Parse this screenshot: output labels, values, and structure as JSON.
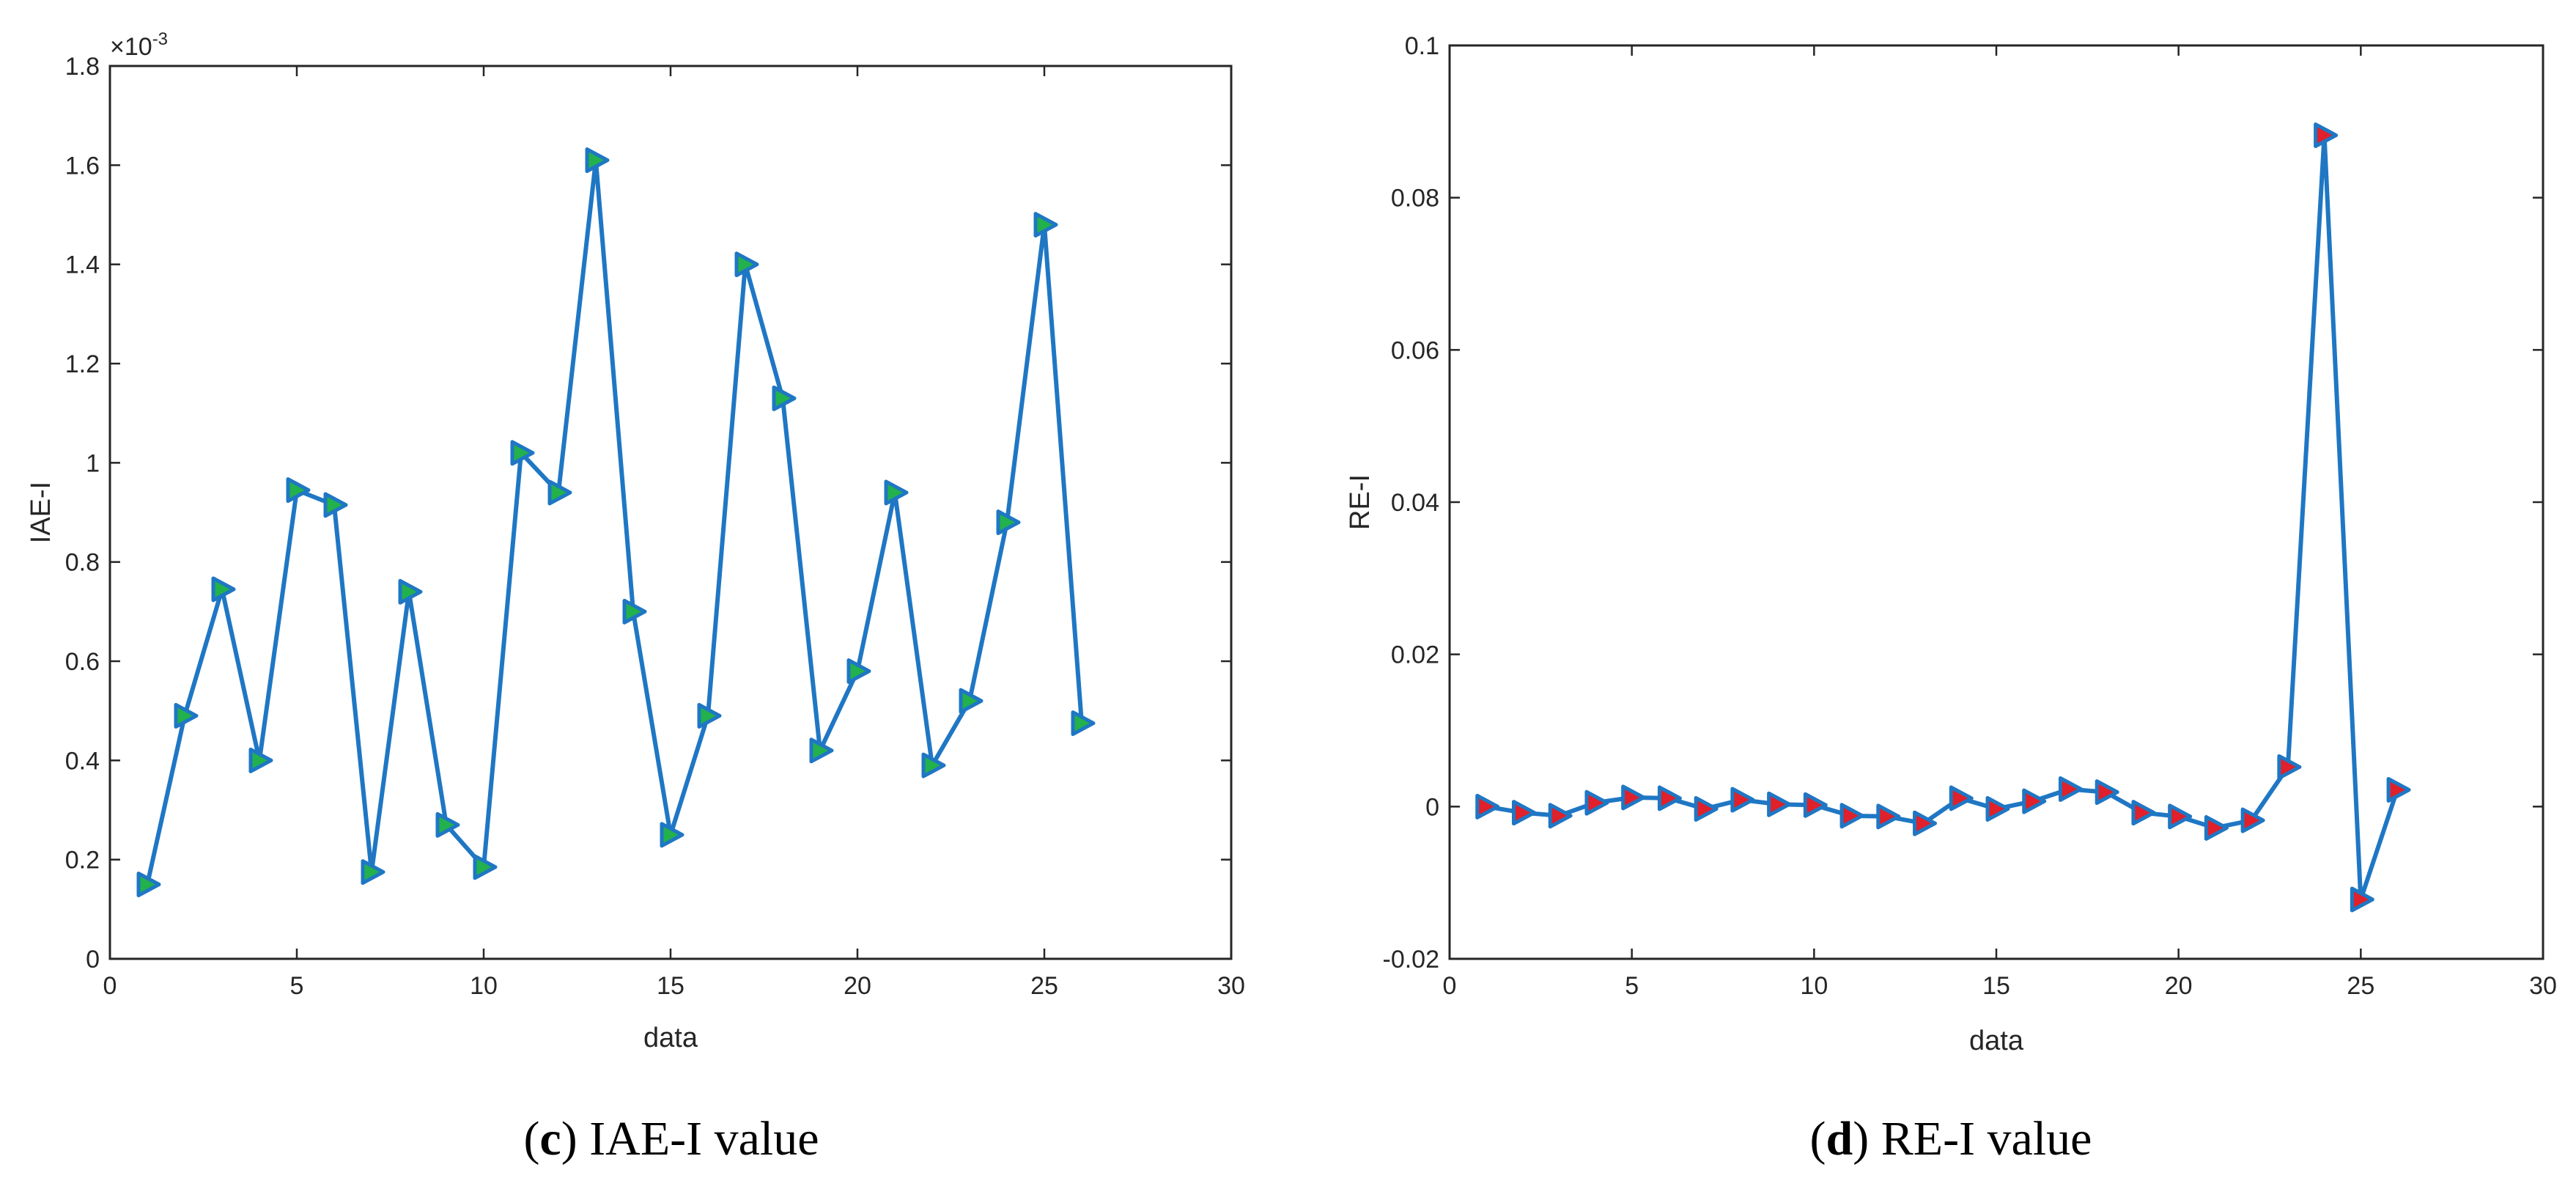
{
  "chart_data": [
    {
      "type": "line",
      "id": "c",
      "caption_letter": "c",
      "caption_open": "(",
      "caption_close": ")",
      "caption_text": " IAE-I value",
      "xlabel": "data",
      "ylabel": "IAE-I",
      "exponent_base": "×10",
      "exponent_power": "-3",
      "xlim": [
        0,
        30
      ],
      "ylim": [
        0,
        1.8
      ],
      "xticks": [
        0,
        5,
        10,
        15,
        20,
        25,
        30
      ],
      "yticks": [
        0,
        0.2,
        0.4,
        0.6,
        0.8,
        1,
        1.2,
        1.4,
        1.6,
        1.8
      ],
      "xtick_labels": [
        "0",
        "5",
        "10",
        "15",
        "20",
        "25",
        "30"
      ],
      "ytick_labels": [
        "0",
        "0.2",
        "0.4",
        "0.6",
        "0.8",
        "1",
        "1.2",
        "1.4",
        "1.6",
        "1.8"
      ],
      "series": [
        {
          "name": "IAE-I",
          "line_color": "#1f77c4",
          "marker_edge_color": "#1f77c4",
          "marker_face_color": "#22b14c",
          "x": [
            1,
            2,
            3,
            4,
            5,
            6,
            7,
            8,
            9,
            10,
            11,
            12,
            13,
            14,
            15,
            16,
            17,
            18,
            19,
            20,
            21,
            22,
            23,
            24,
            25,
            26
          ],
          "y": [
            0.15,
            0.49,
            0.745,
            0.4,
            0.945,
            0.915,
            0.175,
            0.74,
            0.27,
            0.185,
            1.02,
            0.94,
            1.61,
            0.7,
            0.25,
            0.49,
            1.4,
            1.13,
            0.42,
            0.58,
            0.94,
            0.39,
            0.52,
            0.88,
            1.48,
            0.475
          ]
        }
      ]
    },
    {
      "type": "line",
      "id": "d",
      "caption_letter": "d",
      "caption_open": "(",
      "caption_close": ")",
      "caption_text": " RE-I value",
      "xlabel": "data",
      "ylabel": "RE-I",
      "xlim": [
        0,
        30
      ],
      "ylim": [
        -0.02,
        0.1
      ],
      "xticks": [
        0,
        5,
        10,
        15,
        20,
        25,
        30
      ],
      "yticks": [
        -0.02,
        0,
        0.02,
        0.04,
        0.06,
        0.08,
        0.1
      ],
      "xtick_labels": [
        "0",
        "5",
        "10",
        "15",
        "20",
        "25",
        "30"
      ],
      "ytick_labels": [
        "-0.02",
        "0",
        "0.02",
        "0.04",
        "0.06",
        "0.08",
        "0.1"
      ],
      "series": [
        {
          "name": "RE-I",
          "line_color": "#1f77c4",
          "marker_edge_color": "#1f77c4",
          "marker_face_color": "#e0202a",
          "x": [
            1,
            2,
            3,
            4,
            5,
            6,
            7,
            8,
            9,
            10,
            11,
            12,
            13,
            14,
            15,
            16,
            17,
            18,
            19,
            20,
            21,
            22,
            23,
            24,
            25,
            26
          ],
          "y": [
            0.0,
            -0.0008,
            -0.0012,
            0.0005,
            0.0012,
            0.0011,
            -0.0003,
            0.0009,
            0.0003,
            0.0002,
            -0.0012,
            -0.0013,
            -0.0022,
            0.0011,
            -0.0003,
            0.0007,
            0.0023,
            0.0019,
            -0.0008,
            -0.0013,
            -0.0028,
            -0.0018,
            0.0052,
            0.0882,
            -0.0122,
            0.0022
          ]
        }
      ]
    }
  ]
}
